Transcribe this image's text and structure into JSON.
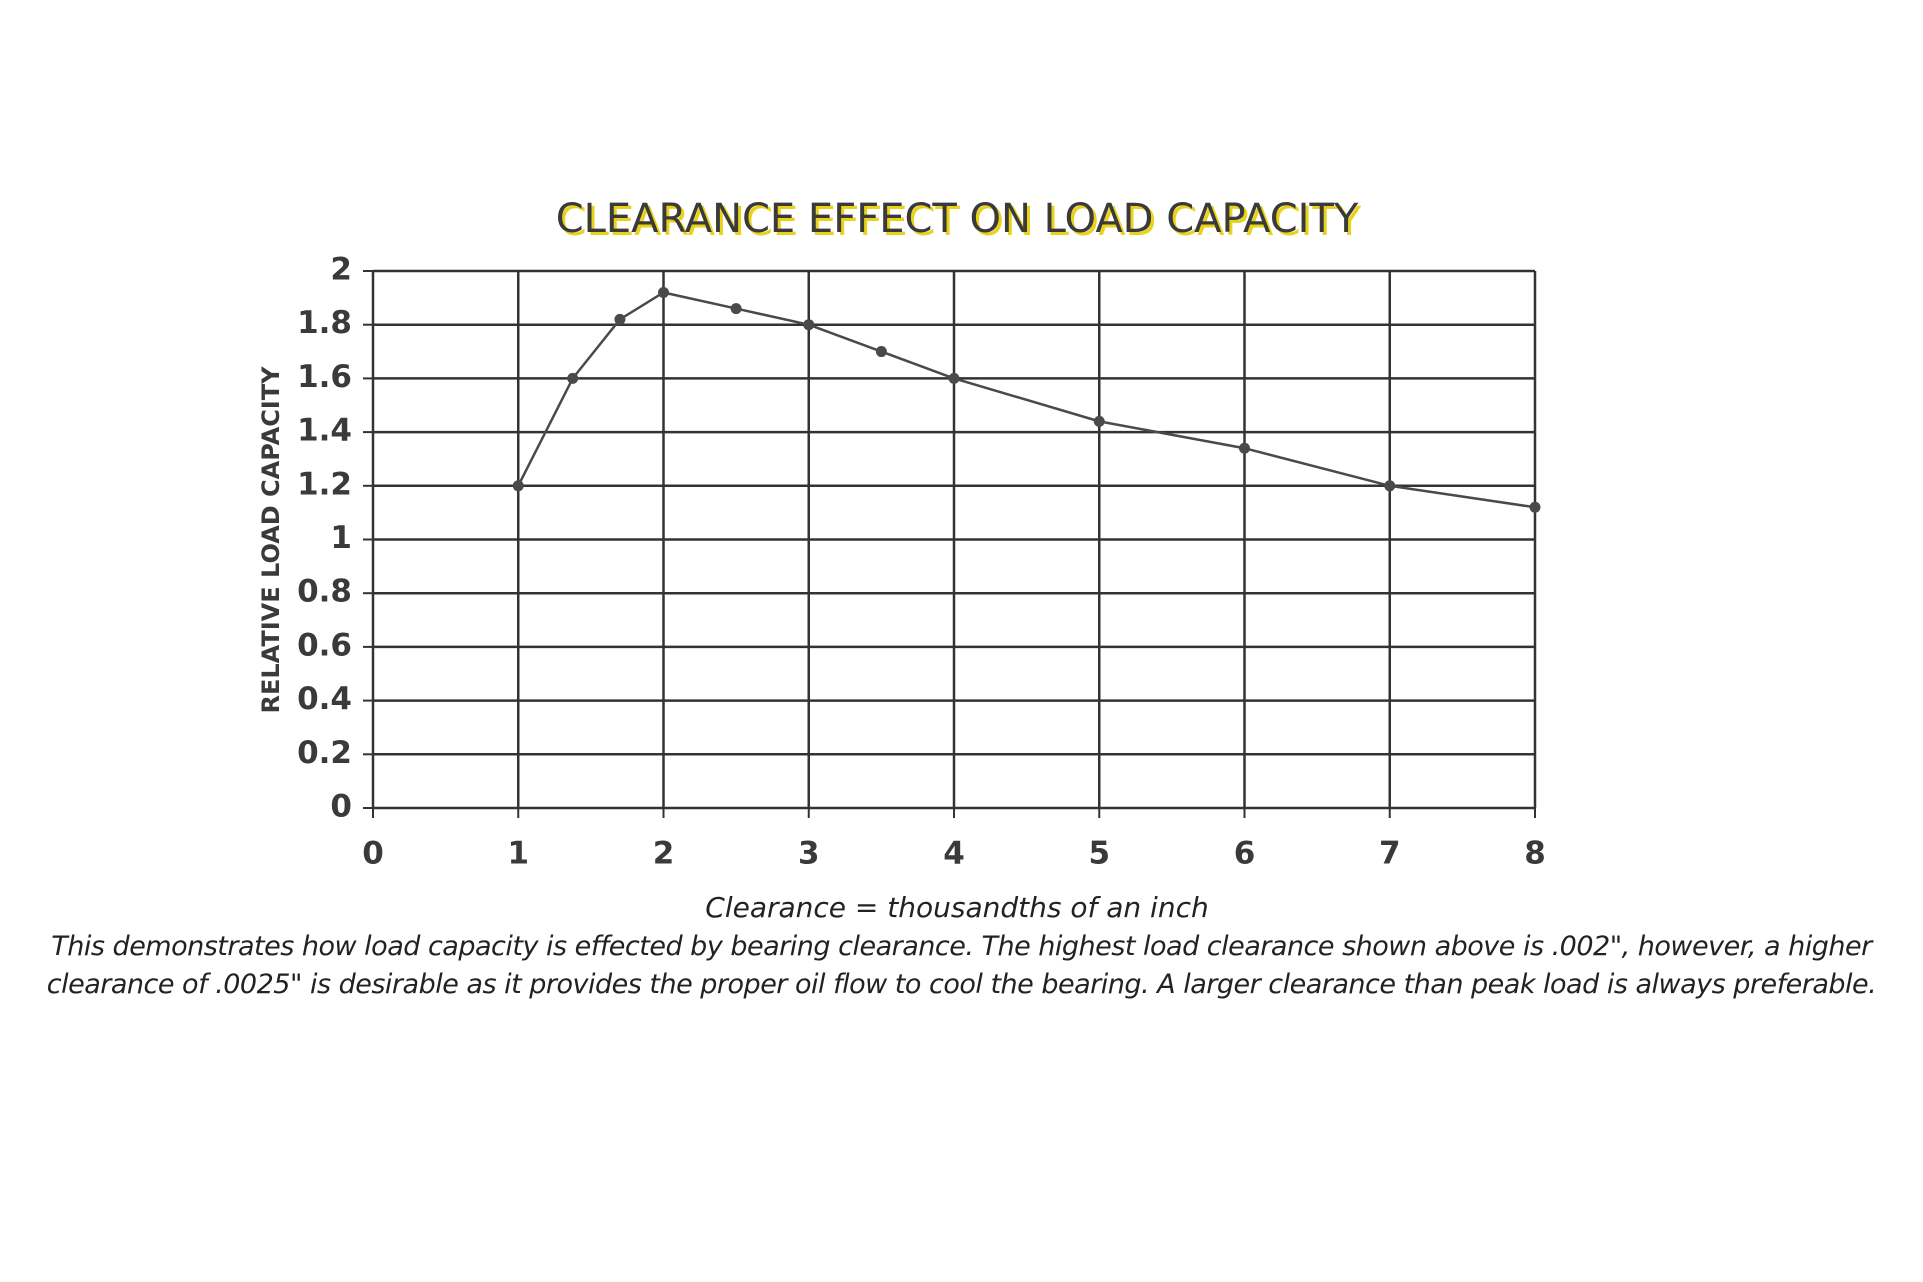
{
  "chart_data": {
    "type": "line",
    "title": "CLEARANCE EFFECT ON LOAD CAPACITY",
    "x_label": "Clearance = thousandths of an inch",
    "y_label": "RELATIVE LOAD CAPACITY",
    "caption": "This demonstrates how load capacity is effected by bearing clearance. The highest load clearance shown above is .002\", however, a higher clearance of .0025\" is desirable as it provides the proper oil flow to cool the bearing. A larger clearance than peak load is always preferable.",
    "x": [
      1,
      1.375,
      1.7,
      2,
      2.5,
      3,
      3.5,
      4,
      5,
      6,
      7,
      8
    ],
    "series": [
      {
        "name": "Relative load capacity",
        "color": "#4a4a4a",
        "values": [
          1.2,
          1.6,
          1.82,
          1.92,
          1.86,
          1.8,
          1.7,
          1.6,
          1.44,
          1.34,
          1.2,
          1.12
        ]
      }
    ],
    "xlim": [
      0,
      8
    ],
    "xticks": [
      0,
      1,
      2,
      3,
      4,
      5,
      6,
      7,
      8
    ],
    "ylim": [
      0,
      2
    ],
    "yticks": [
      0,
      0.2,
      0.4,
      0.6,
      0.8,
      1,
      1.2,
      1.4,
      1.6,
      1.8,
      2
    ],
    "grid": true
  }
}
